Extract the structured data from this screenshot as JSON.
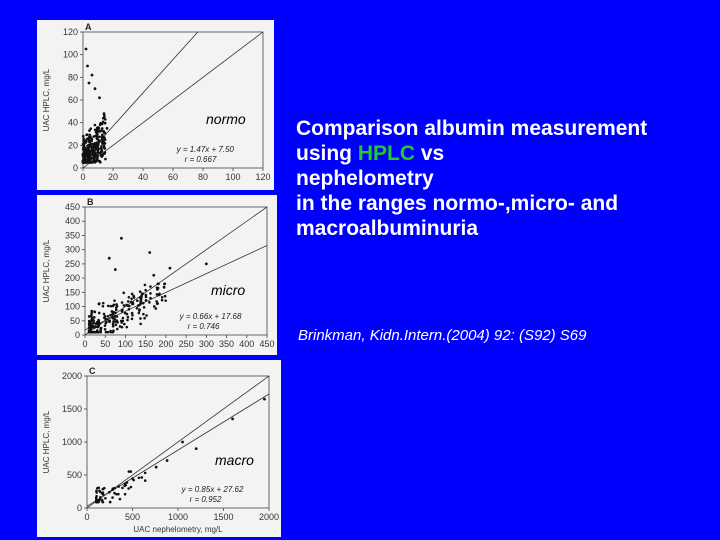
{
  "slide": {
    "title_part1": "Comparison albumin measurement using ",
    "title_hplc": "HPLC",
    "title_part2": " vs ",
    "title_nephelometry": "nephelometry",
    "title_part3": "in the ranges normo-,micro- and macroalbuminuria",
    "citation": "Brinkman, Kidn.Intern.(2004) 92: (S92) S69",
    "colors": {
      "background": "#0000ff",
      "text": "#ffffff",
      "highlight": "#22cc22"
    }
  },
  "chart_data": [
    {
      "type": "scatter",
      "panel": "A",
      "overlay_label": "normo",
      "ylabel": "UAC HPLC, mg/L",
      "xlabel": "",
      "xlim": [
        0,
        120
      ],
      "ylim": [
        0,
        120
      ],
      "xticks": [
        0,
        20,
        40,
        60,
        80,
        100,
        120
      ],
      "yticks": [
        0,
        20,
        40,
        60,
        80,
        100,
        120
      ],
      "regression": {
        "slope": 1.47,
        "intercept": 7.5,
        "equation": "y = 1.47x + 7.50",
        "r_label": "r = 0.667"
      },
      "identity_line": true,
      "cluster": {
        "x_range": [
          0,
          15
        ],
        "y_range": [
          5,
          55
        ],
        "count": 320
      },
      "outliers": [
        [
          3,
          90
        ],
        [
          4,
          75
        ],
        [
          2,
          105
        ],
        [
          8,
          70
        ],
        [
          11,
          62
        ],
        [
          14,
          48
        ],
        [
          16,
          35
        ],
        [
          6,
          82
        ]
      ]
    },
    {
      "type": "scatter",
      "panel": "B",
      "overlay_label": "micro",
      "ylabel": "UAC HPLC, mg/L",
      "xlabel": "",
      "xlim": [
        0,
        450
      ],
      "ylim": [
        0,
        450
      ],
      "xticks": [
        0,
        50,
        100,
        150,
        200,
        250,
        300,
        350,
        400,
        450
      ],
      "yticks": [
        0,
        50,
        100,
        150,
        200,
        250,
        300,
        350,
        400,
        450
      ],
      "regression": {
        "slope": 0.66,
        "intercept": 17.68,
        "equation": "y = 0.66x + 17.68",
        "r_label": "r = 0.746"
      },
      "identity_line": true,
      "cluster": {
        "x_range": [
          10,
          200
        ],
        "y_range": [
          10,
          180
        ],
        "count": 220
      },
      "outliers": [
        [
          90,
          340
        ],
        [
          60,
          270
        ],
        [
          160,
          290
        ],
        [
          300,
          250
        ],
        [
          170,
          210
        ],
        [
          210,
          235
        ],
        [
          75,
          230
        ],
        [
          35,
          110
        ]
      ]
    },
    {
      "type": "scatter",
      "panel": "C",
      "overlay_label": "macro",
      "ylabel": "UAC HPLC, mg/L",
      "xlabel": "UAC nephelometry, mg/L",
      "xlim": [
        0,
        2000
      ],
      "ylim": [
        0,
        2000
      ],
      "xticks": [
        0,
        500,
        1000,
        1500,
        2000
      ],
      "yticks": [
        0,
        500,
        1000,
        1500,
        2000
      ],
      "regression": {
        "slope": 0.85,
        "intercept": 27.62,
        "equation": "y = 0.85x + 27.62",
        "r_label": "r = 0.952"
      },
      "identity_line": true,
      "cluster": {
        "x_range": [
          100,
          650
        ],
        "y_range": [
          90,
          560
        ],
        "count": 60
      },
      "outliers": [
        [
          1600,
          1350
        ],
        [
          1950,
          1650
        ],
        [
          1200,
          900
        ],
        [
          880,
          720
        ],
        [
          1050,
          1000
        ],
        [
          760,
          620
        ]
      ]
    }
  ]
}
